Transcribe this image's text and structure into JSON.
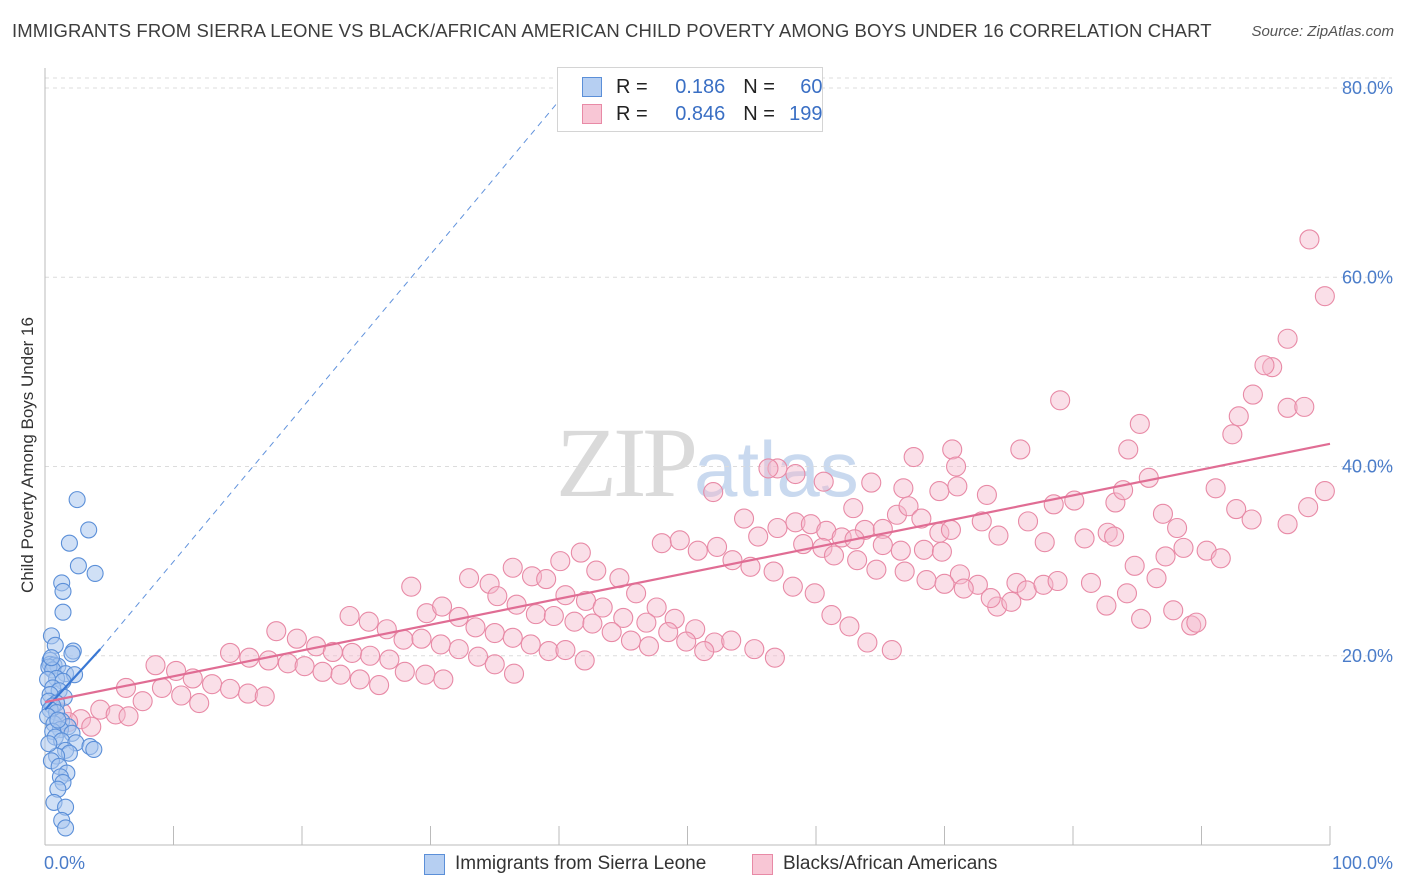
{
  "title": "IMMIGRANTS FROM SIERRA LEONE VS BLACK/AFRICAN AMERICAN CHILD POVERTY AMONG BOYS UNDER 16 CORRELATION CHART",
  "source": "Source: ZipAtlas.com",
  "watermark": {
    "zip": "ZIP",
    "atlas": "atlas"
  },
  "legend": {
    "blue": {
      "r_label": "R =",
      "r_value": "0.186",
      "n_label": "N =",
      "n_value": "60"
    },
    "pink": {
      "r_label": "R =",
      "r_value": "0.846",
      "n_label": "N =",
      "n_value": "199"
    }
  },
  "bottom_legend": {
    "blue": "Immigrants from Sierra Leone",
    "pink": "Blacks/African Americans"
  },
  "colors": {
    "blue_fill": "#a9c6ee",
    "blue_stroke": "#5b8fd8",
    "blue_line": "#3a78d4",
    "pink_fill": "#f5b8cb",
    "pink_stroke": "#e88aa6",
    "pink_line": "#e06d94",
    "grid": "#dcdcdc",
    "tick_text": "#4a7cc9"
  },
  "chart_data": {
    "type": "scatter",
    "title": "IMMIGRANTS FROM SIERRA LEONE VS BLACK/AFRICAN AMERICAN CHILD POVERTY AMONG BOYS UNDER 16 CORRELATION CHART",
    "xlabel": "",
    "ylabel": "Child Poverty Among Boys Under 16",
    "xlim": [
      0,
      100
    ],
    "ylim": [
      0,
      80
    ],
    "x_ticks": [
      "0.0%",
      "100.0%"
    ],
    "y_ticks": [
      {
        "value": 20,
        "label": "20.0%"
      },
      {
        "value": 40,
        "label": "40.0%"
      },
      {
        "value": 60,
        "label": "60.0%"
      },
      {
        "value": 80,
        "label": "80.0%"
      }
    ],
    "grid": true,
    "legend_position": "top-center",
    "series": [
      {
        "name": "Immigrants from Sierra Leone",
        "color": "blue",
        "points": [
          [
            2.5,
            36.5
          ],
          [
            3.4,
            33.3
          ],
          [
            1.9,
            31.9
          ],
          [
            2.6,
            29.5
          ],
          [
            3.9,
            28.7
          ],
          [
            1.3,
            27.7
          ],
          [
            1.4,
            26.8
          ],
          [
            1.4,
            24.6
          ],
          [
            0.5,
            22.1
          ],
          [
            0.8,
            21.1
          ],
          [
            2.2,
            20.5
          ],
          [
            2.1,
            20.2
          ],
          [
            0.4,
            19.5
          ],
          [
            0.4,
            19.1
          ],
          [
            0.7,
            19.0
          ],
          [
            1.0,
            18.9
          ],
          [
            0.3,
            18.8
          ],
          [
            0.6,
            18.5
          ],
          [
            1.6,
            18.1
          ],
          [
            2.3,
            18.0
          ],
          [
            0.9,
            17.6
          ],
          [
            0.2,
            17.5
          ],
          [
            1.4,
            17.3
          ],
          [
            0.6,
            16.6
          ],
          [
            1.1,
            16.3
          ],
          [
            0.4,
            15.9
          ],
          [
            1.5,
            15.6
          ],
          [
            0.3,
            15.2
          ],
          [
            0.9,
            15.0
          ],
          [
            0.6,
            14.7
          ],
          [
            0.4,
            14.3
          ],
          [
            0.9,
            14.0
          ],
          [
            0.2,
            13.6
          ],
          [
            1.3,
            13.1
          ],
          [
            0.7,
            12.8
          ],
          [
            1.8,
            12.5
          ],
          [
            1.2,
            12.2
          ],
          [
            0.6,
            12.0
          ],
          [
            2.1,
            11.8
          ],
          [
            0.8,
            11.4
          ],
          [
            1.3,
            11.0
          ],
          [
            2.4,
            10.8
          ],
          [
            3.5,
            10.4
          ],
          [
            3.8,
            10.1
          ],
          [
            1.6,
            10.0
          ],
          [
            1.9,
            9.7
          ],
          [
            0.9,
            9.4
          ],
          [
            0.5,
            8.9
          ],
          [
            1.1,
            8.3
          ],
          [
            1.7,
            7.6
          ],
          [
            1.2,
            7.2
          ],
          [
            1.4,
            6.6
          ],
          [
            1.0,
            5.9
          ],
          [
            0.7,
            4.5
          ],
          [
            1.6,
            4.0
          ],
          [
            1.3,
            2.6
          ],
          [
            1.6,
            1.8
          ],
          [
            0.5,
            19.8
          ],
          [
            1.0,
            13.2
          ],
          [
            0.3,
            10.7
          ]
        ]
      },
      {
        "name": "Blacks/African Americans",
        "color": "pink",
        "points": [
          [
            98.4,
            64.0
          ],
          [
            99.6,
            58.0
          ],
          [
            96.7,
            53.5
          ],
          [
            95.5,
            50.5
          ],
          [
            94.9,
            50.7
          ],
          [
            94.0,
            47.6
          ],
          [
            96.7,
            46.2
          ],
          [
            98.0,
            46.3
          ],
          [
            92.9,
            45.3
          ],
          [
            92.4,
            43.4
          ],
          [
            79.0,
            47.0
          ],
          [
            85.2,
            44.5
          ],
          [
            84.3,
            41.8
          ],
          [
            75.9,
            41.8
          ],
          [
            70.6,
            41.8
          ],
          [
            67.6,
            41.0
          ],
          [
            70.9,
            40.0
          ],
          [
            57.0,
            39.8
          ],
          [
            58.4,
            39.2
          ],
          [
            56.3,
            39.8
          ],
          [
            60.6,
            38.4
          ],
          [
            64.3,
            38.3
          ],
          [
            66.8,
            37.7
          ],
          [
            69.6,
            37.4
          ],
          [
            71.0,
            37.9
          ],
          [
            73.3,
            37.0
          ],
          [
            78.5,
            36.0
          ],
          [
            80.1,
            36.4
          ],
          [
            83.3,
            36.2
          ],
          [
            83.9,
            37.5
          ],
          [
            85.9,
            38.8
          ],
          [
            87.0,
            35.0
          ],
          [
            88.1,
            33.5
          ],
          [
            91.1,
            37.7
          ],
          [
            92.7,
            35.5
          ],
          [
            93.9,
            34.4
          ],
          [
            96.7,
            33.9
          ],
          [
            98.3,
            35.7
          ],
          [
            99.6,
            37.4
          ],
          [
            62.9,
            35.6
          ],
          [
            63.8,
            33.3
          ],
          [
            65.2,
            33.4
          ],
          [
            66.3,
            34.9
          ],
          [
            67.2,
            35.8
          ],
          [
            68.2,
            34.5
          ],
          [
            69.6,
            33.0
          ],
          [
            70.5,
            33.3
          ],
          [
            72.9,
            34.2
          ],
          [
            74.2,
            32.7
          ],
          [
            76.5,
            34.2
          ],
          [
            77.8,
            32.0
          ],
          [
            80.9,
            32.4
          ],
          [
            82.7,
            33.0
          ],
          [
            83.2,
            32.6
          ],
          [
            84.8,
            29.5
          ],
          [
            86.5,
            28.2
          ],
          [
            87.2,
            30.5
          ],
          [
            88.6,
            31.4
          ],
          [
            90.4,
            31.1
          ],
          [
            91.5,
            30.3
          ],
          [
            58.4,
            34.1
          ],
          [
            59.6,
            33.9
          ],
          [
            60.8,
            33.2
          ],
          [
            62.0,
            32.5
          ],
          [
            63.0,
            32.3
          ],
          [
            65.2,
            31.7
          ],
          [
            66.6,
            31.1
          ],
          [
            68.4,
            31.2
          ],
          [
            69.8,
            31.0
          ],
          [
            71.2,
            28.6
          ],
          [
            72.6,
            27.5
          ],
          [
            74.1,
            25.2
          ],
          [
            75.6,
            27.7
          ],
          [
            76.4,
            26.9
          ],
          [
            77.7,
            27.5
          ],
          [
            78.8,
            27.9
          ],
          [
            81.4,
            27.7
          ],
          [
            82.6,
            25.3
          ],
          [
            84.2,
            26.6
          ],
          [
            85.3,
            23.9
          ],
          [
            87.8,
            24.8
          ],
          [
            89.2,
            23.2
          ],
          [
            89.6,
            23.5
          ],
          [
            52.0,
            37.3
          ],
          [
            54.4,
            34.5
          ],
          [
            55.5,
            32.6
          ],
          [
            57.0,
            33.5
          ],
          [
            59.0,
            31.8
          ],
          [
            60.5,
            31.4
          ],
          [
            61.4,
            30.6
          ],
          [
            63.2,
            30.1
          ],
          [
            64.7,
            29.1
          ],
          [
            66.9,
            28.9
          ],
          [
            68.6,
            28.0
          ],
          [
            70.0,
            27.6
          ],
          [
            71.5,
            27.1
          ],
          [
            73.6,
            26.1
          ],
          [
            75.2,
            25.7
          ],
          [
            48.0,
            31.9
          ],
          [
            49.4,
            32.2
          ],
          [
            50.8,
            31.1
          ],
          [
            52.3,
            31.5
          ],
          [
            53.5,
            30.1
          ],
          [
            54.9,
            29.4
          ],
          [
            56.7,
            28.9
          ],
          [
            58.2,
            27.3
          ],
          [
            59.9,
            26.6
          ],
          [
            61.2,
            24.3
          ],
          [
            62.6,
            23.1
          ],
          [
            64.0,
            21.4
          ],
          [
            65.9,
            20.6
          ],
          [
            40.1,
            30.0
          ],
          [
            41.7,
            30.9
          ],
          [
            42.9,
            29.0
          ],
          [
            44.7,
            28.2
          ],
          [
            46.0,
            26.6
          ],
          [
            47.6,
            25.1
          ],
          [
            49.0,
            23.9
          ],
          [
            50.6,
            22.8
          ],
          [
            52.1,
            21.4
          ],
          [
            53.4,
            21.6
          ],
          [
            55.2,
            20.7
          ],
          [
            56.8,
            19.8
          ],
          [
            36.4,
            29.3
          ],
          [
            37.9,
            28.4
          ],
          [
            39.0,
            28.1
          ],
          [
            40.5,
            26.4
          ],
          [
            42.1,
            25.8
          ],
          [
            43.4,
            25.1
          ],
          [
            45.0,
            24.0
          ],
          [
            46.8,
            23.5
          ],
          [
            48.5,
            22.5
          ],
          [
            49.9,
            21.5
          ],
          [
            51.3,
            20.5
          ],
          [
            33.0,
            28.2
          ],
          [
            34.6,
            27.6
          ],
          [
            35.2,
            26.3
          ],
          [
            36.7,
            25.4
          ],
          [
            38.2,
            24.4
          ],
          [
            39.6,
            24.2
          ],
          [
            41.2,
            23.6
          ],
          [
            42.6,
            23.4
          ],
          [
            44.1,
            22.5
          ],
          [
            45.6,
            21.6
          ],
          [
            47.0,
            21.0
          ],
          [
            28.5,
            27.3
          ],
          [
            29.7,
            24.5
          ],
          [
            30.9,
            25.2
          ],
          [
            32.2,
            24.1
          ],
          [
            33.5,
            23.0
          ],
          [
            35.0,
            22.4
          ],
          [
            36.4,
            21.9
          ],
          [
            37.8,
            21.2
          ],
          [
            39.2,
            20.5
          ],
          [
            40.5,
            20.6
          ],
          [
            42.0,
            19.5
          ],
          [
            23.7,
            24.2
          ],
          [
            25.2,
            23.6
          ],
          [
            26.6,
            22.8
          ],
          [
            27.9,
            21.7
          ],
          [
            29.3,
            21.8
          ],
          [
            30.8,
            21.2
          ],
          [
            32.2,
            20.7
          ],
          [
            33.7,
            19.9
          ],
          [
            35.0,
            19.1
          ],
          [
            36.5,
            18.1
          ],
          [
            18.0,
            22.6
          ],
          [
            19.6,
            21.8
          ],
          [
            21.1,
            21.0
          ],
          [
            22.4,
            20.4
          ],
          [
            23.9,
            20.3
          ],
          [
            25.3,
            20.0
          ],
          [
            26.8,
            19.6
          ],
          [
            28.0,
            18.3
          ],
          [
            29.6,
            18.0
          ],
          [
            31.0,
            17.5
          ],
          [
            14.4,
            20.3
          ],
          [
            15.9,
            19.8
          ],
          [
            17.4,
            19.5
          ],
          [
            18.9,
            19.2
          ],
          [
            20.2,
            18.9
          ],
          [
            21.6,
            18.3
          ],
          [
            23.0,
            18.0
          ],
          [
            24.5,
            17.5
          ],
          [
            26.0,
            16.9
          ],
          [
            8.6,
            19.0
          ],
          [
            10.2,
            18.4
          ],
          [
            11.5,
            17.6
          ],
          [
            13.0,
            17.0
          ],
          [
            14.4,
            16.5
          ],
          [
            15.8,
            16.0
          ],
          [
            17.1,
            15.7
          ],
          [
            9.1,
            16.6
          ],
          [
            10.6,
            15.8
          ],
          [
            12.0,
            15.0
          ],
          [
            6.3,
            16.6
          ],
          [
            7.6,
            15.2
          ],
          [
            4.3,
            14.3
          ],
          [
            5.5,
            13.8
          ],
          [
            2.8,
            13.3
          ],
          [
            1.8,
            13.0
          ],
          [
            1.3,
            14.0
          ],
          [
            3.6,
            12.5
          ],
          [
            6.5,
            13.6
          ]
        ]
      }
    ],
    "trend_lines": [
      {
        "series": "Immigrants from Sierra Leone",
        "from": [
          0,
          14.3
        ],
        "to": [
          4.3,
          20.7
        ],
        "dashed_extension_to": [
          40.1,
          78.8
        ]
      },
      {
        "series": "Blacks/African Americans",
        "from": [
          0,
          15.1
        ],
        "to": [
          100,
          42.4
        ]
      }
    ]
  }
}
